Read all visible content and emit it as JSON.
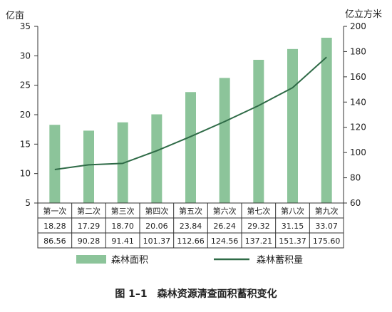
{
  "chart_data": {
    "type": "bar+line",
    "title": "图 1–1　森林资源清查面积蓄积变化",
    "categories": [
      "第一次",
      "第二次",
      "第三次",
      "第四次",
      "第五次",
      "第六次",
      "第七次",
      "第八次",
      "第九次"
    ],
    "y_left": {
      "label": "亿亩",
      "ylim": [
        5,
        35
      ],
      "ticks": [
        "5",
        "10",
        "15",
        "20",
        "25",
        "30",
        "35"
      ]
    },
    "y_right": {
      "label": "亿立方米",
      "ylim": [
        60,
        200
      ],
      "ticks": [
        "60",
        "80",
        "100",
        "120",
        "140",
        "160",
        "180",
        "200"
      ]
    },
    "series": [
      {
        "name": "森林面积",
        "type": "bar",
        "axis": "left",
        "color": "#8cc49a",
        "values": [
          18.28,
          17.29,
          18.7,
          20.06,
          23.84,
          26.24,
          29.32,
          31.15,
          33.07
        ],
        "labels": [
          "18.28",
          "17.29",
          "18.70",
          "20.06",
          "23.84",
          "26.24",
          "29.32",
          "31.15",
          "33.07"
        ]
      },
      {
        "name": "森林蓄积量",
        "type": "line",
        "axis": "right",
        "color": "#2f6b47",
        "values": [
          86.56,
          90.28,
          91.41,
          101.37,
          112.66,
          124.56,
          137.21,
          151.37,
          175.6
        ],
        "labels": [
          "86.56",
          "90.28",
          "91.41",
          "101.37",
          "112.66",
          "124.56",
          "137.21",
          "151.37",
          "175.60"
        ]
      }
    ],
    "grid": false,
    "legend": "bottom"
  }
}
